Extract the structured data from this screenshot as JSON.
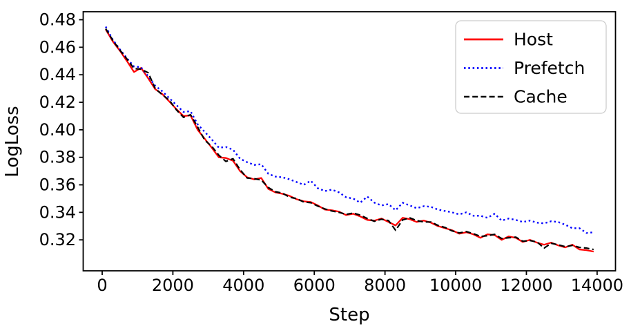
{
  "chart_data": {
    "type": "line",
    "title": "",
    "xlabel": "Step",
    "ylabel": "LogLoss",
    "xlim": [
      -537,
      14520
    ],
    "ylim": [
      0.2975,
      0.4858
    ],
    "grid": false,
    "legend_position": "upper right",
    "x_ticks": [
      "0",
      "2000",
      "4000",
      "6000",
      "8000",
      "10000",
      "12000",
      "14000"
    ],
    "y_ticks": [
      "0.32",
      "0.34",
      "0.36",
      "0.38",
      "0.40",
      "0.42",
      "0.44",
      "0.46",
      "0.48"
    ],
    "x": [
      100,
      300,
      500,
      700,
      900,
      1100,
      1300,
      1500,
      1700,
      1900,
      2100,
      2300,
      2500,
      2700,
      2900,
      3100,
      3300,
      3500,
      3700,
      3900,
      4100,
      4300,
      4500,
      4700,
      4900,
      5100,
      5300,
      5500,
      5700,
      5900,
      6100,
      6300,
      6500,
      6700,
      6900,
      7100,
      7300,
      7500,
      7700,
      7900,
      8100,
      8300,
      8500,
      8700,
      8900,
      9100,
      9300,
      9500,
      9700,
      9900,
      10100,
      10300,
      10500,
      10700,
      10900,
      11100,
      11300,
      11500,
      11700,
      11900,
      12100,
      12300,
      12500,
      12700,
      12900,
      13100,
      13300,
      13500,
      13700,
      13900
    ],
    "series": [
      {
        "name": "Host",
        "color": "#ff0000",
        "style": "solid",
        "values": [
          0.473,
          0.4642,
          0.4575,
          0.45,
          0.442,
          0.445,
          0.4375,
          0.4295,
          0.426,
          0.4205,
          0.415,
          0.41,
          0.4105,
          0.4,
          0.3935,
          0.387,
          0.38,
          0.3795,
          0.3775,
          0.37,
          0.3655,
          0.364,
          0.365,
          0.357,
          0.3545,
          0.3535,
          0.352,
          0.3495,
          0.348,
          0.3475,
          0.345,
          0.342,
          0.3415,
          0.3405,
          0.338,
          0.339,
          0.337,
          0.3345,
          0.334,
          0.3355,
          0.333,
          0.3305,
          0.336,
          0.335,
          0.333,
          0.334,
          0.3325,
          0.33,
          0.3285,
          0.327,
          0.3245,
          0.3255,
          0.324,
          0.3215,
          0.324,
          0.3235,
          0.32,
          0.3225,
          0.3215,
          0.3185,
          0.32,
          0.318,
          0.3165,
          0.318,
          0.316,
          0.3145,
          0.3165,
          0.313,
          0.3125,
          0.3115
        ]
      },
      {
        "name": "Prefetch",
        "color": "#0000ff",
        "style": "dotted",
        "values": [
          0.475,
          0.4655,
          0.4585,
          0.452,
          0.446,
          0.4455,
          0.439,
          0.432,
          0.428,
          0.423,
          0.418,
          0.413,
          0.4135,
          0.404,
          0.3985,
          0.393,
          0.387,
          0.3875,
          0.3855,
          0.379,
          0.3765,
          0.3745,
          0.375,
          0.368,
          0.366,
          0.3655,
          0.364,
          0.362,
          0.36,
          0.363,
          0.3575,
          0.3555,
          0.3565,
          0.3545,
          0.351,
          0.35,
          0.347,
          0.3515,
          0.347,
          0.345,
          0.346,
          0.3415,
          0.347,
          0.345,
          0.343,
          0.3445,
          0.344,
          0.342,
          0.341,
          0.34,
          0.3385,
          0.34,
          0.3375,
          0.3375,
          0.336,
          0.339,
          0.334,
          0.3355,
          0.3345,
          0.333,
          0.334,
          0.3325,
          0.332,
          0.3335,
          0.333,
          0.331,
          0.3285,
          0.3285,
          0.325,
          0.3255
        ]
      },
      {
        "name": "Cache",
        "color": "#000000",
        "style": "dashed",
        "values": [
          0.4735,
          0.465,
          0.458,
          0.4515,
          0.4445,
          0.444,
          0.4415,
          0.43,
          0.4255,
          0.4215,
          0.4145,
          0.409,
          0.411,
          0.402,
          0.3925,
          0.388,
          0.3815,
          0.377,
          0.379,
          0.371,
          0.365,
          0.3645,
          0.3635,
          0.358,
          0.355,
          0.354,
          0.351,
          0.35,
          0.3475,
          0.347,
          0.3445,
          0.3425,
          0.341,
          0.34,
          0.3385,
          0.3395,
          0.338,
          0.3355,
          0.3335,
          0.335,
          0.334,
          0.327,
          0.3345,
          0.336,
          0.334,
          0.333,
          0.333,
          0.3305,
          0.329,
          0.3265,
          0.325,
          0.326,
          0.3245,
          0.3225,
          0.323,
          0.324,
          0.321,
          0.3215,
          0.322,
          0.319,
          0.3195,
          0.3185,
          0.314,
          0.3175,
          0.3165,
          0.315,
          0.316,
          0.3145,
          0.314,
          0.313
        ]
      }
    ]
  }
}
